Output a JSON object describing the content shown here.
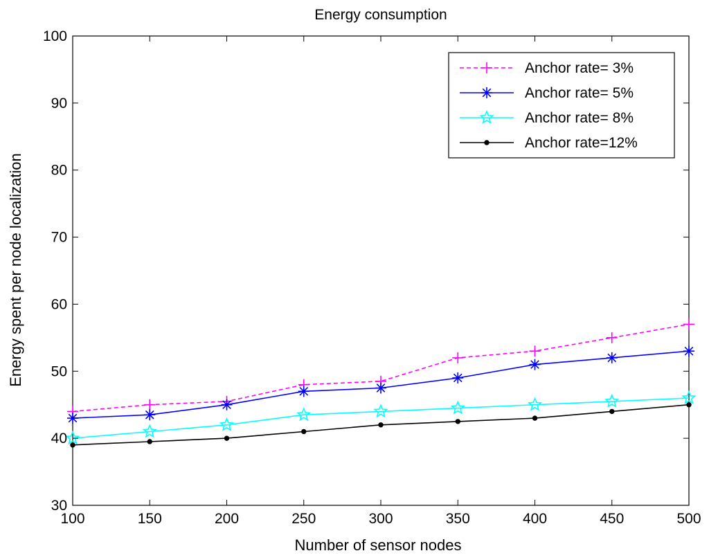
{
  "chart_data": {
    "type": "line",
    "title": "Energy consumption",
    "xlabel": "Number of sensor nodes",
    "ylabel": "Energy spent per node localization",
    "x": [
      100,
      150,
      200,
      250,
      300,
      350,
      400,
      450,
      500
    ],
    "xlim": [
      100,
      500
    ],
    "ylim": [
      30,
      100
    ],
    "xticks": [
      "100",
      "150",
      "200",
      "250",
      "300",
      "350",
      "400",
      "450",
      "500"
    ],
    "yticks": [
      "30",
      "40",
      "50",
      "60",
      "70",
      "80",
      "90",
      "100"
    ],
    "legend_position": "top-right",
    "grid": false,
    "series": [
      {
        "name": "Anchor rate= 3%",
        "color": "#ff00ff",
        "dash": "dashed",
        "marker": "plus",
        "values": [
          44,
          45,
          45.5,
          48,
          48.5,
          52,
          53,
          55,
          57
        ]
      },
      {
        "name": "Anchor rate= 5%",
        "color": "#0000ff",
        "dash": "solid",
        "marker": "asterisk",
        "values": [
          43,
          43.5,
          45,
          47,
          47.5,
          49,
          51,
          52,
          53
        ]
      },
      {
        "name": "Anchor rate= 8%",
        "color": "#00ffff",
        "dash": "solid",
        "marker": "star",
        "values": [
          40,
          41,
          42,
          43.5,
          44,
          44.5,
          45,
          45.5,
          46
        ]
      },
      {
        "name": "Anchor rate=12%",
        "color": "#000000",
        "dash": "solid",
        "marker": "dot",
        "values": [
          39,
          39.5,
          40,
          41,
          42,
          42.5,
          43,
          44,
          45
        ]
      }
    ]
  }
}
